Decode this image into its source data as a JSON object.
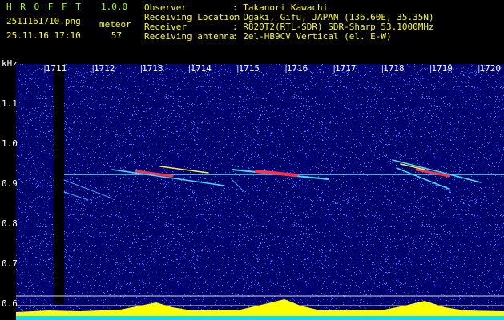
{
  "header": {
    "title": "H R O F F T",
    "version": "1.0.0",
    "filename": "2511161710.png",
    "mode": "meteor",
    "datetime": "25.11.16 17:10",
    "count": "57",
    "info": [
      {
        "label": "Observer",
        "value": ": Takanori Kawachi"
      },
      {
        "label": "Receiving Location",
        "value": ": Ogaki, Gifu, JAPAN (136.60E, 35.35N)"
      },
      {
        "label": "Receiver",
        "value": ": R820T2(RTL-SDR) SDR-Sharp 53.1000MHz"
      },
      {
        "label": "Receiving antenna",
        "value": ": 2el-HB9CV Vertical (el. E-W)"
      }
    ]
  },
  "x_axis": {
    "labels": [
      "1711",
      "1712",
      "1713",
      "1714",
      "1715",
      "1716",
      "1717",
      "1718",
      "1719",
      "1720"
    ]
  },
  "y_axis": {
    "unit": "kHz",
    "labels": [
      "1.1",
      "1.0",
      "0.9",
      "0.8",
      "0.7",
      "0.6"
    ]
  }
}
